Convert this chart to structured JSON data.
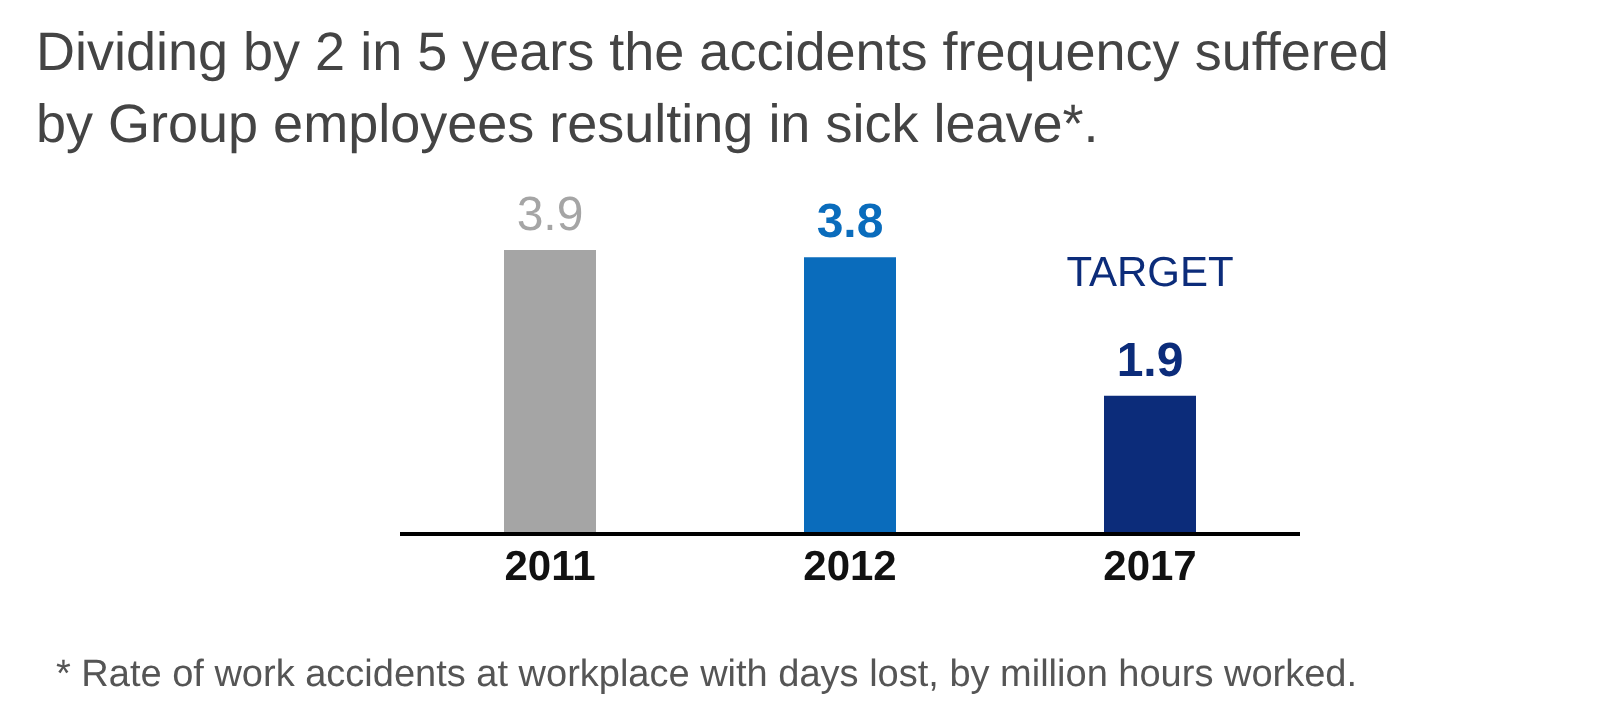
{
  "chart_data": {
    "type": "bar",
    "title": "Dividing by 2 in 5 years the accidents frequency suffered by Group employees resulting in sick leave*.",
    "categories": [
      "2011",
      "2012",
      "2017"
    ],
    "values": [
      3.9,
      3.8,
      1.9
    ],
    "colors": [
      "#a5a5a5",
      "#0a6cbc",
      "#0c2c7a"
    ],
    "data_labels": true,
    "annotations": [
      "TARGET",
      "* Rate of work accidents at workplace with days lost, by million hours worked."
    ]
  }
}
